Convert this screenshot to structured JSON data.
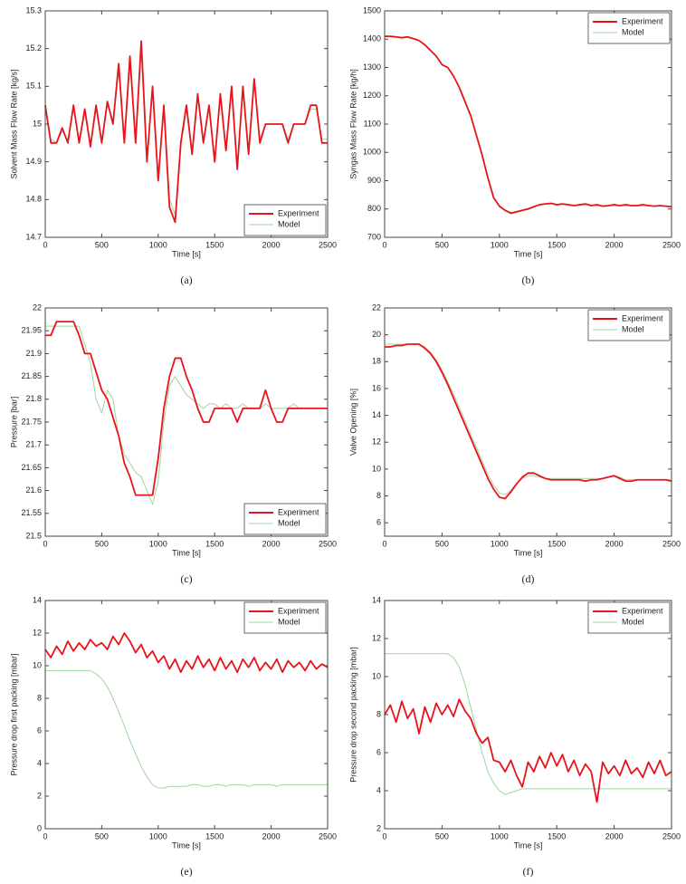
{
  "chart_data": [
    {
      "type": "line",
      "caption": "(a)",
      "x_label": "Time [s]",
      "y_label": "Solvent Mass Flow Rate [kg/s]",
      "legend": "lower right",
      "xlim": [
        0,
        2500
      ],
      "xticks": [
        0,
        500,
        1000,
        1500,
        2000,
        2500
      ],
      "ylim": [
        14.7,
        15.3
      ],
      "yticks": [
        14.7,
        14.8,
        14.9,
        15,
        15.1,
        15.2,
        15.3
      ],
      "x": [
        0,
        50,
        100,
        150,
        200,
        250,
        300,
        350,
        400,
        450,
        500,
        550,
        600,
        650,
        700,
        750,
        800,
        850,
        900,
        950,
        1000,
        1050,
        1100,
        1150,
        1200,
        1250,
        1300,
        1350,
        1400,
        1450,
        1500,
        1550,
        1600,
        1650,
        1700,
        1750,
        1800,
        1850,
        1900,
        1950,
        2000,
        2050,
        2100,
        2150,
        2200,
        2250,
        2300,
        2350,
        2400,
        2450,
        2500
      ],
      "series": [
        {
          "name": "Experiment",
          "color": "#e8141b",
          "values": [
            15.05,
            14.95,
            14.95,
            14.99,
            14.95,
            15.05,
            14.95,
            15.04,
            14.94,
            15.05,
            14.95,
            15.06,
            15.0,
            15.16,
            14.95,
            15.18,
            14.95,
            15.22,
            14.9,
            15.1,
            14.85,
            15.05,
            14.78,
            14.74,
            14.95,
            15.05,
            14.92,
            15.08,
            14.95,
            15.05,
            14.9,
            15.08,
            14.93,
            15.1,
            14.88,
            15.1,
            14.92,
            15.12,
            14.95,
            15.0,
            15.0,
            15.0,
            15.0,
            14.95,
            15.0,
            15.0,
            15.0,
            15.05,
            15.05,
            14.95,
            14.95
          ]
        },
        {
          "name": "Model",
          "color": "#9fd49f",
          "values": [
            15.04,
            14.96,
            14.95,
            14.98,
            14.96,
            15.04,
            14.96,
            15.03,
            14.95,
            15.04,
            14.96,
            15.05,
            15.01,
            15.14,
            14.96,
            15.16,
            14.96,
            15.2,
            14.91,
            15.09,
            14.86,
            15.04,
            14.8,
            14.76,
            14.94,
            15.04,
            14.93,
            15.07,
            14.96,
            15.04,
            14.91,
            15.07,
            14.94,
            15.09,
            14.89,
            15.09,
            14.93,
            15.11,
            14.96,
            15.0,
            15.0,
            15.0,
            15.0,
            14.96,
            15.0,
            15.0,
            15.0,
            15.04,
            15.04,
            14.96,
            14.96
          ]
        }
      ]
    },
    {
      "type": "line",
      "caption": "(b)",
      "x_label": "Time [s]",
      "y_label": "Syngas Mass Flow Rate [kg/h]",
      "legend": "upper right",
      "xlim": [
        0,
        2500
      ],
      "xticks": [
        0,
        500,
        1000,
        1500,
        2000,
        2500
      ],
      "ylim": [
        700,
        1500
      ],
      "yticks": [
        700,
        800,
        900,
        1000,
        1100,
        1200,
        1300,
        1400,
        1500
      ],
      "x": [
        0,
        50,
        100,
        150,
        200,
        250,
        300,
        350,
        400,
        450,
        500,
        550,
        600,
        650,
        700,
        750,
        800,
        850,
        900,
        950,
        1000,
        1050,
        1100,
        1150,
        1200,
        1250,
        1300,
        1350,
        1400,
        1450,
        1500,
        1550,
        1600,
        1650,
        1700,
        1750,
        1800,
        1850,
        1900,
        1950,
        2000,
        2050,
        2100,
        2150,
        2200,
        2250,
        2300,
        2350,
        2400,
        2450,
        2500
      ],
      "series": [
        {
          "name": "Experiment",
          "color": "#e8141b",
          "values": [
            1410,
            1410,
            1408,
            1405,
            1408,
            1402,
            1395,
            1380,
            1360,
            1340,
            1310,
            1300,
            1270,
            1230,
            1180,
            1130,
            1060,
            990,
            910,
            840,
            810,
            795,
            785,
            790,
            795,
            800,
            808,
            815,
            818,
            820,
            815,
            818,
            815,
            812,
            815,
            818,
            812,
            815,
            810,
            812,
            815,
            812,
            815,
            812,
            812,
            815,
            812,
            810,
            812,
            810,
            808
          ]
        },
        {
          "name": "Model",
          "color": "#9fd49f",
          "values": [
            1412,
            1411,
            1409,
            1407,
            1406,
            1403,
            1396,
            1382,
            1362,
            1338,
            1312,
            1298,
            1268,
            1228,
            1178,
            1128,
            1058,
            988,
            908,
            842,
            812,
            797,
            788,
            792,
            797,
            802,
            808,
            814,
            817,
            818,
            816,
            816,
            815,
            814,
            814,
            815,
            814,
            813,
            812,
            812,
            813,
            813,
            813,
            812,
            812,
            813,
            812,
            811,
            811,
            810,
            809
          ]
        }
      ]
    },
    {
      "type": "line",
      "caption": "(c)",
      "x_label": "Time [s]",
      "y_label": "Pressure [bar]",
      "legend": "lower right",
      "xlim": [
        0,
        2500
      ],
      "xticks": [
        0,
        500,
        1000,
        1500,
        2000,
        2500
      ],
      "ylim": [
        21.5,
        22
      ],
      "yticks": [
        21.5,
        21.55,
        21.6,
        21.65,
        21.7,
        21.75,
        21.8,
        21.85,
        21.9,
        21.95,
        22
      ],
      "x": [
        0,
        50,
        100,
        150,
        200,
        250,
        300,
        350,
        400,
        450,
        500,
        550,
        600,
        650,
        700,
        750,
        800,
        850,
        900,
        950,
        1000,
        1050,
        1100,
        1150,
        1200,
        1250,
        1300,
        1350,
        1400,
        1450,
        1500,
        1550,
        1600,
        1650,
        1700,
        1750,
        1800,
        1850,
        1900,
        1950,
        2000,
        2050,
        2100,
        2150,
        2200,
        2250,
        2300,
        2350,
        2400,
        2450,
        2500
      ],
      "series": [
        {
          "name": "Experiment",
          "color": "#e8141b",
          "values": [
            21.94,
            21.94,
            21.97,
            21.97,
            21.97,
            21.97,
            21.94,
            21.9,
            21.9,
            21.86,
            21.82,
            21.8,
            21.76,
            21.72,
            21.66,
            21.63,
            21.59,
            21.59,
            21.59,
            21.59,
            21.67,
            21.78,
            21.85,
            21.89,
            21.89,
            21.85,
            21.82,
            21.78,
            21.75,
            21.75,
            21.78,
            21.78,
            21.78,
            21.78,
            21.75,
            21.78,
            21.78,
            21.78,
            21.78,
            21.82,
            21.78,
            21.75,
            21.75,
            21.78,
            21.78,
            21.78,
            21.78,
            21.78,
            21.78,
            21.78,
            21.78
          ]
        },
        {
          "name": "Model",
          "color": "#9fd49f",
          "values": [
            21.96,
            21.96,
            21.96,
            21.96,
            21.96,
            21.96,
            21.96,
            21.92,
            21.88,
            21.8,
            21.77,
            21.82,
            21.8,
            21.72,
            21.68,
            21.66,
            21.64,
            21.63,
            21.6,
            21.57,
            21.62,
            21.75,
            21.83,
            21.85,
            21.83,
            21.81,
            21.8,
            21.79,
            21.78,
            21.79,
            21.79,
            21.78,
            21.79,
            21.78,
            21.78,
            21.79,
            21.78,
            21.78,
            21.78,
            21.79,
            21.78,
            21.78,
            21.78,
            21.78,
            21.79,
            21.78,
            21.78,
            21.78,
            21.78,
            21.78,
            21.78
          ]
        }
      ]
    },
    {
      "type": "line",
      "caption": "(d)",
      "x_label": "Time [s]",
      "y_label": "Valve Opening [%]",
      "legend": "upper right",
      "xlim": [
        0,
        2500
      ],
      "xticks": [
        0,
        500,
        1000,
        1500,
        2000,
        2500
      ],
      "ylim": [
        5,
        22
      ],
      "yticks": [
        6,
        8,
        10,
        12,
        14,
        16,
        18,
        20,
        22
      ],
      "x": [
        0,
        50,
        100,
        150,
        200,
        250,
        300,
        350,
        400,
        450,
        500,
        550,
        600,
        650,
        700,
        750,
        800,
        850,
        900,
        950,
        1000,
        1050,
        1100,
        1150,
        1200,
        1250,
        1300,
        1350,
        1400,
        1450,
        1500,
        1550,
        1600,
        1650,
        1700,
        1750,
        1800,
        1850,
        1900,
        1950,
        2000,
        2050,
        2100,
        2150,
        2200,
        2250,
        2300,
        2350,
        2400,
        2450,
        2500
      ],
      "series": [
        {
          "name": "Experiment",
          "color": "#e8141b",
          "values": [
            19.1,
            19.1,
            19.2,
            19.2,
            19.3,
            19.3,
            19.3,
            19.0,
            18.6,
            18.0,
            17.2,
            16.3,
            15.3,
            14.3,
            13.3,
            12.3,
            11.3,
            10.3,
            9.3,
            8.5,
            7.9,
            7.8,
            8.3,
            8.9,
            9.4,
            9.7,
            9.7,
            9.5,
            9.3,
            9.2,
            9.2,
            9.2,
            9.2,
            9.2,
            9.2,
            9.1,
            9.2,
            9.2,
            9.3,
            9.4,
            9.5,
            9.3,
            9.1,
            9.1,
            9.2,
            9.2,
            9.2,
            9.2,
            9.2,
            9.2,
            9.1
          ]
        },
        {
          "name": "Model",
          "color": "#9fd49f",
          "values": [
            19.3,
            19.3,
            19.3,
            19.3,
            19.3,
            19.3,
            19.3,
            19.1,
            18.7,
            18.1,
            17.4,
            16.5,
            15.6,
            14.6,
            13.6,
            12.6,
            11.6,
            10.6,
            9.6,
            8.8,
            8.2,
            8.1,
            8.4,
            8.9,
            9.3,
            9.5,
            9.5,
            9.4,
            9.3,
            9.3,
            9.3,
            9.3,
            9.3,
            9.3,
            9.3,
            9.3,
            9.3,
            9.3,
            9.3,
            9.4,
            9.5,
            9.4,
            9.2,
            9.2,
            9.2,
            9.2,
            9.2,
            9.2,
            9.2,
            9.2,
            9.2
          ]
        }
      ]
    },
    {
      "type": "line",
      "caption": "(e)",
      "x_label": "Time [s]",
      "y_label": "Pressure  drop  first  packing [mbar]",
      "legend": "upper right",
      "xlim": [
        0,
        2500
      ],
      "xticks": [
        0,
        500,
        1000,
        1500,
        2000,
        2500
      ],
      "ylim": [
        0,
        14
      ],
      "yticks": [
        0,
        2,
        4,
        6,
        8,
        10,
        12,
        14
      ],
      "x": [
        0,
        50,
        100,
        150,
        200,
        250,
        300,
        350,
        400,
        450,
        500,
        550,
        600,
        650,
        700,
        750,
        800,
        850,
        900,
        950,
        1000,
        1050,
        1100,
        1150,
        1200,
        1250,
        1300,
        1350,
        1400,
        1450,
        1500,
        1550,
        1600,
        1650,
        1700,
        1750,
        1800,
        1850,
        1900,
        1950,
        2000,
        2050,
        2100,
        2150,
        2200,
        2250,
        2300,
        2350,
        2400,
        2450,
        2500
      ],
      "series": [
        {
          "name": "Experiment",
          "color": "#e8141b",
          "values": [
            11.0,
            10.5,
            11.2,
            10.7,
            11.5,
            10.9,
            11.4,
            11.0,
            11.6,
            11.2,
            11.4,
            11.0,
            11.8,
            11.3,
            12.0,
            11.5,
            10.8,
            11.3,
            10.5,
            10.9,
            10.2,
            10.6,
            9.8,
            10.4,
            9.6,
            10.3,
            9.8,
            10.6,
            9.9,
            10.4,
            9.7,
            10.5,
            9.8,
            10.3,
            9.6,
            10.4,
            9.9,
            10.5,
            9.7,
            10.2,
            9.8,
            10.4,
            9.6,
            10.3,
            9.9,
            10.2,
            9.7,
            10.3,
            9.8,
            10.1,
            9.9
          ]
        },
        {
          "name": "Model",
          "color": "#9fd49f",
          "values": [
            9.7,
            9.7,
            9.7,
            9.7,
            9.7,
            9.7,
            9.7,
            9.7,
            9.7,
            9.5,
            9.2,
            8.7,
            8.0,
            7.2,
            6.3,
            5.4,
            4.6,
            3.8,
            3.2,
            2.7,
            2.5,
            2.5,
            2.6,
            2.6,
            2.6,
            2.6,
            2.7,
            2.7,
            2.6,
            2.6,
            2.7,
            2.7,
            2.6,
            2.7,
            2.7,
            2.7,
            2.6,
            2.7,
            2.7,
            2.7,
            2.7,
            2.6,
            2.7,
            2.7,
            2.7,
            2.7,
            2.7,
            2.7,
            2.7,
            2.7,
            2.7
          ]
        }
      ]
    },
    {
      "type": "line",
      "caption": "(f)",
      "x_label": "Time [s]",
      "y_label": "Pressure  drop  second  packing [mbar]",
      "legend": "upper right",
      "xlim": [
        0,
        2500
      ],
      "xticks": [
        0,
        500,
        1000,
        1500,
        2000,
        2500
      ],
      "ylim": [
        2,
        14
      ],
      "yticks": [
        2,
        4,
        6,
        8,
        10,
        12,
        14
      ],
      "x": [
        0,
        50,
        100,
        150,
        200,
        250,
        300,
        350,
        400,
        450,
        500,
        550,
        600,
        650,
        700,
        750,
        800,
        850,
        900,
        950,
        1000,
        1050,
        1100,
        1150,
        1200,
        1250,
        1300,
        1350,
        1400,
        1450,
        1500,
        1550,
        1600,
        1650,
        1700,
        1750,
        1800,
        1850,
        1900,
        1950,
        2000,
        2050,
        2100,
        2150,
        2200,
        2250,
        2300,
        2350,
        2400,
        2450,
        2500
      ],
      "series": [
        {
          "name": "Experiment",
          "color": "#e8141b",
          "values": [
            8.0,
            8.5,
            7.6,
            8.7,
            7.8,
            8.3,
            7.0,
            8.4,
            7.6,
            8.6,
            8.0,
            8.5,
            7.9,
            8.8,
            8.2,
            7.8,
            7.0,
            6.5,
            6.8,
            5.6,
            5.5,
            5.0,
            5.6,
            4.8,
            4.2,
            5.5,
            5.0,
            5.8,
            5.2,
            6.0,
            5.3,
            5.9,
            5.0,
            5.6,
            4.8,
            5.4,
            5.0,
            3.4,
            5.5,
            4.9,
            5.3,
            4.8,
            5.6,
            4.9,
            5.2,
            4.7,
            5.5,
            4.9,
            5.6,
            4.8,
            5.0
          ]
        },
        {
          "name": "Model",
          "color": "#9fd49f",
          "values": [
            11.2,
            11.2,
            11.2,
            11.2,
            11.2,
            11.2,
            11.2,
            11.2,
            11.2,
            11.2,
            11.2,
            11.2,
            11.0,
            10.5,
            9.6,
            8.4,
            7.2,
            6.0,
            5.0,
            4.4,
            4.0,
            3.8,
            3.9,
            4.0,
            4.1,
            4.1,
            4.1,
            4.1,
            4.1,
            4.1,
            4.1,
            4.1,
            4.1,
            4.1,
            4.1,
            4.1,
            4.1,
            4.1,
            4.1,
            4.1,
            4.1,
            4.1,
            4.1,
            4.1,
            4.1,
            4.1,
            4.1,
            4.1,
            4.1,
            4.1,
            4.1
          ]
        }
      ]
    }
  ]
}
